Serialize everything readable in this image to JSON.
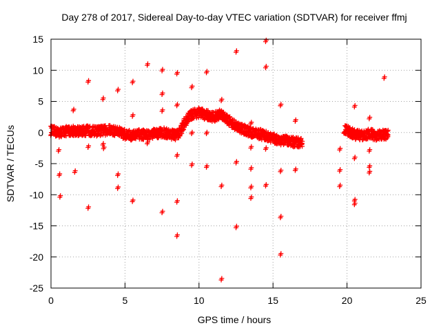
{
  "chart_data": {
    "type": "scatter",
    "title": "Day 278 of 2017, Sidereal Day-to-day VTEC variation (SDTVAR) for receiver ffmj",
    "xlabel": "GPS time / hours",
    "ylabel": "SDTVAR / TECUs",
    "xlim": [
      0,
      25
    ],
    "ylim": [
      -25,
      15
    ],
    "xticks": [
      "0",
      "5",
      "10",
      "15",
      "20",
      "25"
    ],
    "yticks": [
      "15",
      "10",
      "5",
      "0",
      "-5",
      "-10",
      "-15",
      "-20",
      "-25"
    ],
    "grid": true,
    "marker": "+",
    "point_color": "#ff0000",
    "band_segments": [
      {
        "x": [
          0.0,
          0.5,
          1.0,
          1.5,
          2.0,
          2.5,
          3.0,
          3.5,
          4.0,
          4.5,
          5.0,
          5.5,
          6.0,
          6.5,
          7.0,
          7.5,
          8.0,
          8.5,
          8.8,
          9.0,
          9.3,
          9.6,
          10.0,
          10.5,
          11.0,
          11.5,
          12.0,
          12.5,
          13.0,
          13.5,
          14.0,
          14.5,
          15.0,
          15.5,
          16.0,
          16.5,
          17.0
        ],
        "y": [
          0.3,
          0.0,
          0.2,
          0.3,
          0.2,
          0.3,
          0.2,
          0.3,
          0.4,
          0.2,
          -0.3,
          -0.5,
          -0.3,
          -0.4,
          -0.2,
          0.0,
          -0.2,
          -0.5,
          0.5,
          1.5,
          2.5,
          3.0,
          3.2,
          2.8,
          2.5,
          3.0,
          2.0,
          1.0,
          0.5,
          0.0,
          -0.2,
          -0.5,
          -1.0,
          -1.2,
          -1.4,
          -1.6,
          -1.5
        ]
      },
      {
        "x": [
          19.8,
          20.5,
          21.0,
          21.5,
          22.0,
          22.8
        ],
        "y": [
          0.5,
          -0.3,
          -0.5,
          -0.2,
          -0.5,
          -0.3
        ]
      }
    ],
    "outliers": [
      {
        "x": 0.5,
        "y": -3.0
      },
      {
        "x": 0.55,
        "y": -6.9
      },
      {
        "x": 0.6,
        "y": -10.4
      },
      {
        "x": 1.5,
        "y": 3.5
      },
      {
        "x": 1.6,
        "y": -6.4
      },
      {
        "x": 2.5,
        "y": 8.1
      },
      {
        "x": 2.5,
        "y": -2.4
      },
      {
        "x": 2.5,
        "y": -12.2
      },
      {
        "x": 3.5,
        "y": 5.3
      },
      {
        "x": 3.5,
        "y": -2.0
      },
      {
        "x": 3.55,
        "y": -2.6
      },
      {
        "x": 4.5,
        "y": 6.7
      },
      {
        "x": 4.5,
        "y": -6.9
      },
      {
        "x": 4.5,
        "y": -9.0
      },
      {
        "x": 5.5,
        "y": 8.0
      },
      {
        "x": 5.5,
        "y": 2.6
      },
      {
        "x": 5.5,
        "y": -11.1
      },
      {
        "x": 6.5,
        "y": 10.8
      },
      {
        "x": 6.5,
        "y": -1.8
      },
      {
        "x": 7.5,
        "y": 9.9
      },
      {
        "x": 7.5,
        "y": 6.1
      },
      {
        "x": 7.5,
        "y": 3.4
      },
      {
        "x": 7.5,
        "y": -12.9
      },
      {
        "x": 8.5,
        "y": 9.4
      },
      {
        "x": 8.5,
        "y": 4.3
      },
      {
        "x": 8.5,
        "y": -3.8
      },
      {
        "x": 8.5,
        "y": -11.2
      },
      {
        "x": 8.5,
        "y": -16.7
      },
      {
        "x": 9.5,
        "y": 7.2
      },
      {
        "x": 9.5,
        "y": -0.2
      },
      {
        "x": 9.5,
        "y": -5.3
      },
      {
        "x": 10.5,
        "y": 9.6
      },
      {
        "x": 10.5,
        "y": -0.2
      },
      {
        "x": 10.5,
        "y": -5.6
      },
      {
        "x": 11.5,
        "y": 5.1
      },
      {
        "x": 11.5,
        "y": -8.7
      },
      {
        "x": 11.5,
        "y": -23.7
      },
      {
        "x": 12.5,
        "y": 12.9
      },
      {
        "x": 12.5,
        "y": -4.9
      },
      {
        "x": 12.5,
        "y": -15.3
      },
      {
        "x": 13.5,
        "y": 1.4
      },
      {
        "x": 13.5,
        "y": -2.5
      },
      {
        "x": 13.5,
        "y": -5.9
      },
      {
        "x": 13.5,
        "y": -8.9
      },
      {
        "x": 13.5,
        "y": -10.6
      },
      {
        "x": 14.5,
        "y": 14.6
      },
      {
        "x": 14.5,
        "y": 10.4
      },
      {
        "x": 14.5,
        "y": -2.7
      },
      {
        "x": 14.5,
        "y": -8.6
      },
      {
        "x": 15.5,
        "y": 4.3
      },
      {
        "x": 15.5,
        "y": -6.3
      },
      {
        "x": 15.5,
        "y": -13.7
      },
      {
        "x": 15.5,
        "y": -19.7
      },
      {
        "x": 16.5,
        "y": 1.8
      },
      {
        "x": 16.5,
        "y": -6.1
      },
      {
        "x": 19.5,
        "y": -2.8
      },
      {
        "x": 19.5,
        "y": -6.2
      },
      {
        "x": 19.5,
        "y": -8.7
      },
      {
        "x": 20.5,
        "y": 4.1
      },
      {
        "x": 20.5,
        "y": -4.2
      },
      {
        "x": 20.5,
        "y": -11.0
      },
      {
        "x": 20.5,
        "y": -11.6
      },
      {
        "x": 21.5,
        "y": 2.2
      },
      {
        "x": 21.5,
        "y": -3.0
      },
      {
        "x": 21.5,
        "y": -5.6
      },
      {
        "x": 21.5,
        "y": -6.5
      },
      {
        "x": 22.5,
        "y": 8.7
      }
    ]
  }
}
